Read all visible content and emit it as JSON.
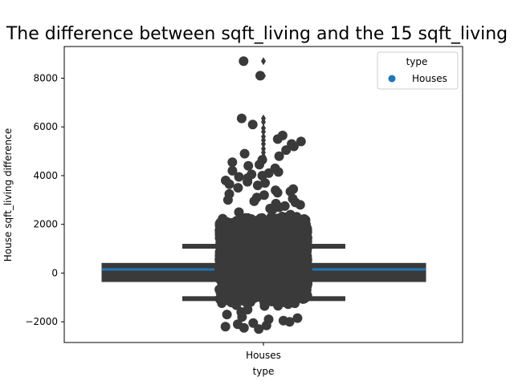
{
  "chart_data": {
    "type": "box",
    "title": "The difference between sqft_living and the 15 sqft_living",
    "xlabel": "type",
    "ylabel": "House sqft_living difference",
    "categories": [
      "Houses"
    ],
    "ylim": [
      -2850,
      9300
    ],
    "yticks": [
      -2000,
      0,
      2000,
      4000,
      6000,
      8000
    ],
    "box": {
      "q1": -350,
      "median": 150,
      "q3": 400,
      "whisker_low": -1050,
      "whisker_high": 1100,
      "box_color": "#3a3a3a",
      "median_color": "#1f77b4"
    },
    "box_outliers": [
      8700,
      8100,
      6350,
      6200,
      5950,
      5800,
      5600,
      5450,
      5300,
      5100,
      4950,
      4800,
      4600
    ],
    "strip_points": [
      8700,
      8100,
      6350,
      6100,
      5650,
      5500,
      5400,
      5300,
      5200,
      5050,
      4900,
      4800,
      4650,
      4550,
      4450,
      4400,
      4300,
      4200,
      4150,
      4100,
      4050,
      4000,
      3950,
      3900,
      3800,
      3750,
      3700,
      3650,
      3600,
      3500,
      3450,
      3400,
      3350,
      3300,
      3250,
      3200,
      3100,
      3050,
      3000,
      2950,
      2900,
      2850,
      2800,
      2750,
      2700,
      2650,
      2600,
      2500,
      -1500,
      -1600,
      -1700,
      -1800,
      -1850,
      -1900,
      -1950,
      -2000,
      -2050,
      -2100,
      -2150,
      -2200,
      -2250,
      -2300
    ],
    "strip_dense_range": [
      -1400,
      2450
    ],
    "strip_color": "#3a3a3a",
    "legend": {
      "title": "type",
      "entries": [
        {
          "label": "Houses",
          "color": "#1f77b4"
        }
      ],
      "position": "top-right"
    },
    "grid": false
  }
}
